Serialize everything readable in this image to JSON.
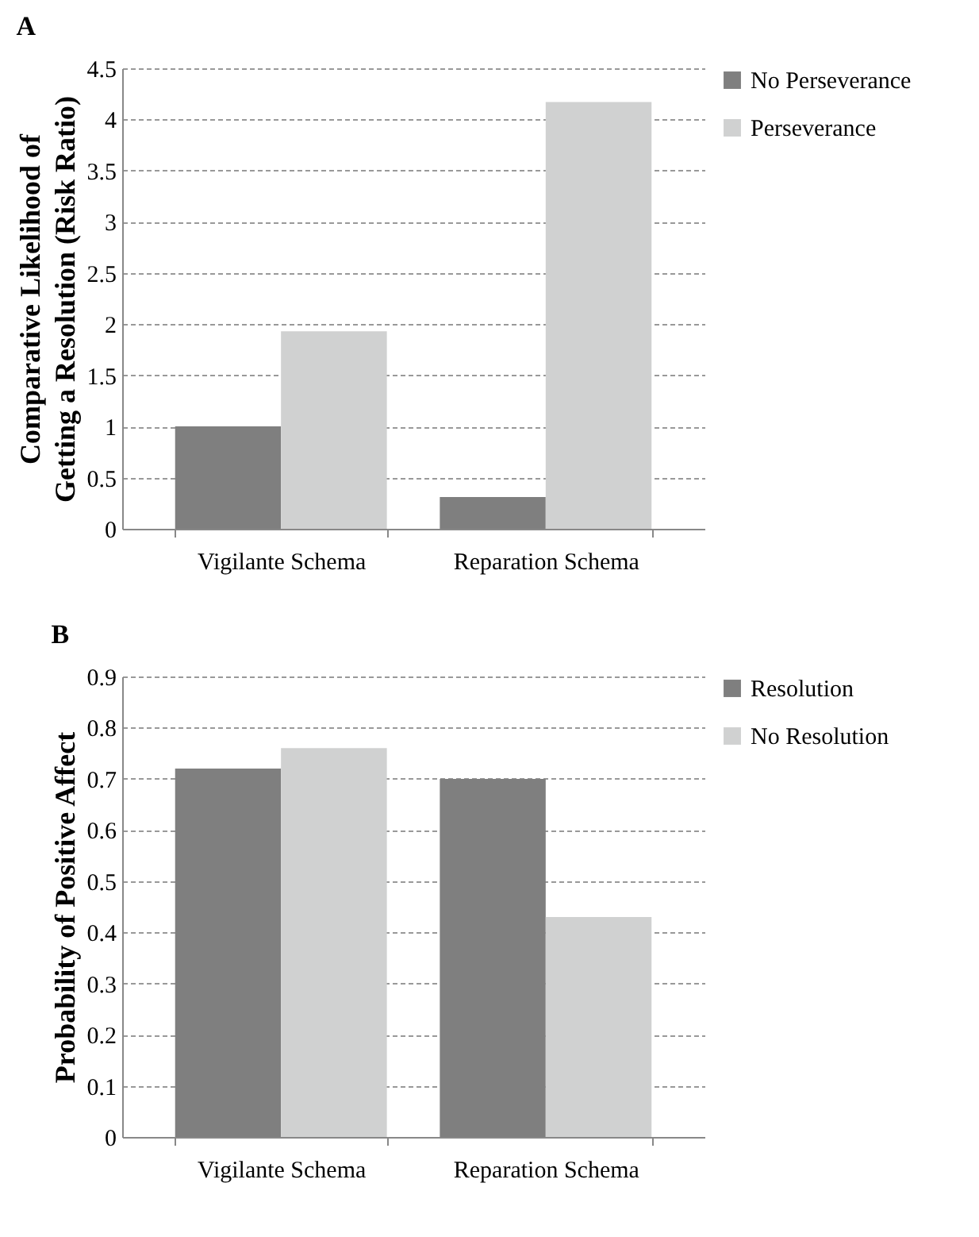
{
  "chart_data": [
    {
      "type": "bar",
      "title": "A",
      "ylabel": "Comparative Likelihood of\nGetting a Resolution (Risk Ratio)",
      "categories": [
        "Vigilante Schema",
        "Reparation Schema"
      ],
      "series": [
        {
          "name": "No Perseverance",
          "color": "#7f7f7f",
          "values": [
            1.0,
            0.31
          ]
        },
        {
          "name": "Perseverance",
          "color": "#d0d1d1",
          "values": [
            1.93,
            4.17
          ]
        }
      ],
      "ylim": [
        0,
        4.5
      ],
      "yticks": [
        0,
        0.5,
        1,
        1.5,
        2,
        2.5,
        3,
        3.5,
        4,
        4.5
      ],
      "grid": "y",
      "legend": "right"
    },
    {
      "type": "bar",
      "title": "B",
      "ylabel": "Probability of Positive Affect",
      "categories": [
        "Vigilante Schema",
        "Reparation Schema"
      ],
      "series": [
        {
          "name": "Resolution",
          "color": "#7f7f7f",
          "values": [
            0.72,
            0.7
          ]
        },
        {
          "name": "No Resolution",
          "color": "#d0d1d1",
          "values": [
            0.76,
            0.43
          ]
        }
      ],
      "ylim": [
        0,
        0.9
      ],
      "yticks": [
        0,
        0.1,
        0.2,
        0.3,
        0.4,
        0.5,
        0.6,
        0.7,
        0.8,
        0.9
      ],
      "grid": "y",
      "legend": "right"
    }
  ]
}
